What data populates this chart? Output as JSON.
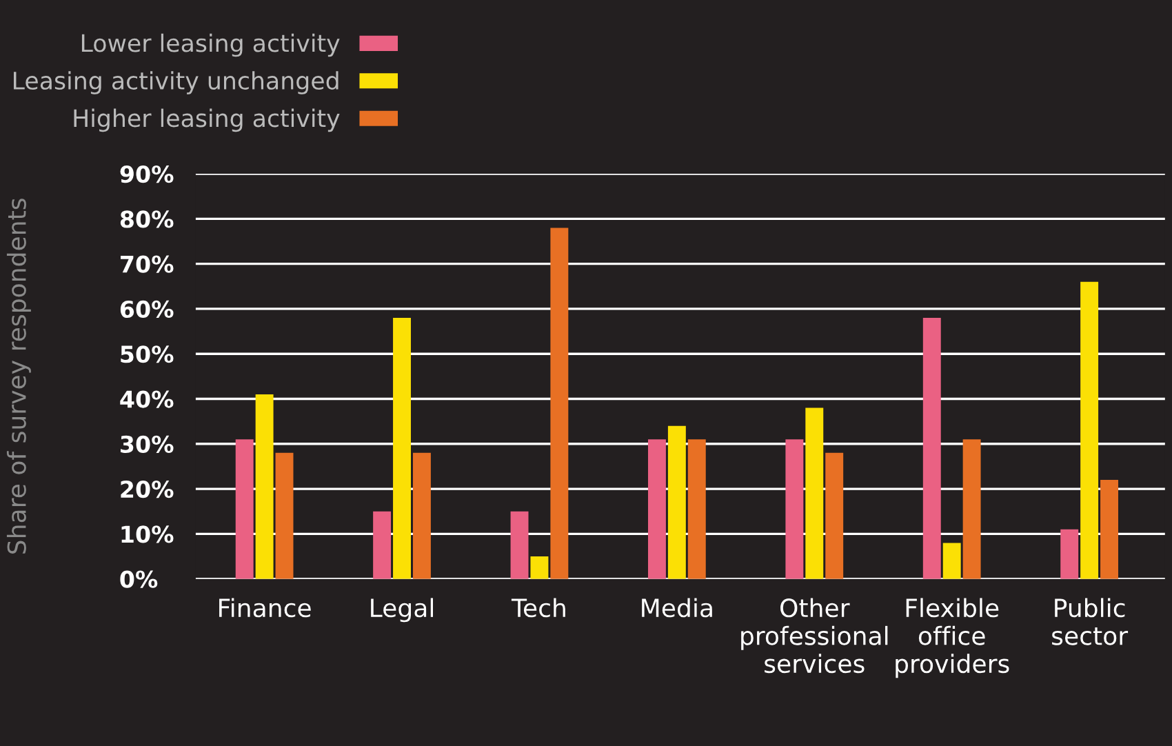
{
  "chart_data": {
    "type": "bar",
    "ylabel": "Share of survey respondents",
    "categories": [
      "Finance",
      "Legal",
      "Tech",
      "Media",
      "Other\nprofessional\nservices",
      "Flexible\noffice\nproviders",
      "Public\nsector"
    ],
    "series": [
      {
        "name": "Lower leasing activity",
        "color": "#ea6183",
        "values": [
          31,
          15,
          15,
          31,
          31,
          58,
          11
        ]
      },
      {
        "name": "Leasing activity unchanged",
        "color": "#fbe005",
        "values": [
          41,
          58,
          5,
          34,
          38,
          8,
          66
        ]
      },
      {
        "name": "Higher leasing activity",
        "color": "#e87024",
        "values": [
          28,
          28,
          78,
          31,
          28,
          31,
          22
        ]
      }
    ],
    "ylim": [
      0,
      90
    ],
    "yticks": [
      {
        "value": 0,
        "label": "0%"
      },
      {
        "value": 10,
        "label": "10%"
      },
      {
        "value": 20,
        "label": "20%"
      },
      {
        "value": 30,
        "label": "30%"
      },
      {
        "value": 40,
        "label": "40%"
      },
      {
        "value": 50,
        "label": "50%"
      },
      {
        "value": 60,
        "label": "60%"
      },
      {
        "value": 70,
        "label": "70%"
      },
      {
        "value": 80,
        "label": "80%"
      },
      {
        "value": 90,
        "label": "90%"
      }
    ],
    "grid": "y",
    "legend": "top left"
  }
}
